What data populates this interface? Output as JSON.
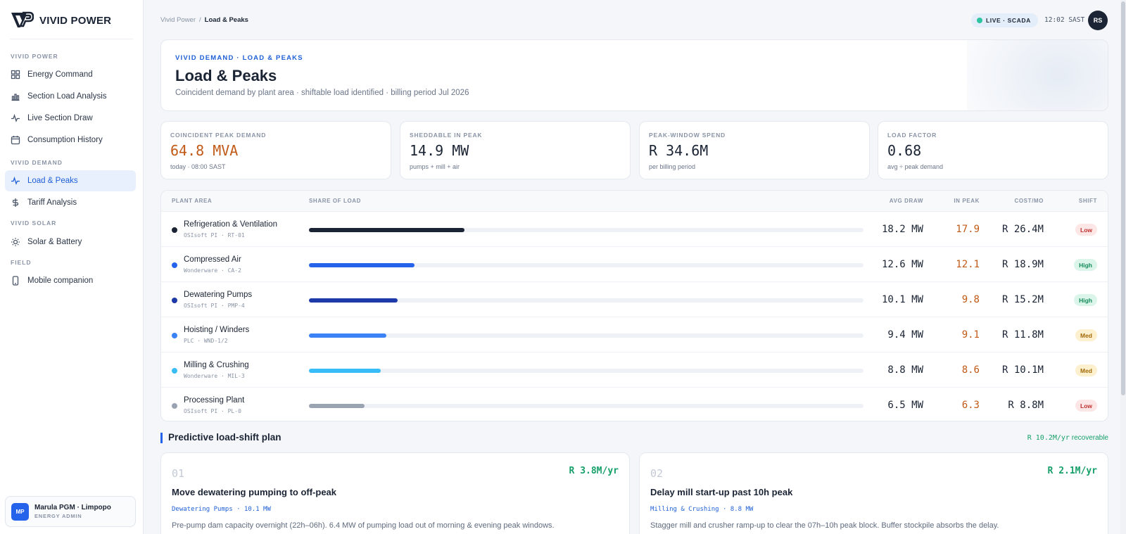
{
  "brand": {
    "name": "VIVID POWER"
  },
  "nav": {
    "sections": [
      {
        "title": "VIVID POWER"
      },
      {
        "title": "VIVID DEMAND"
      },
      {
        "title": "VIVID SOLAR"
      },
      {
        "title": "FIELD"
      }
    ],
    "items": [
      {
        "label": "Energy Command",
        "icon": "grid-icon"
      },
      {
        "label": "Section Load Analysis",
        "icon": "bar-chart-icon"
      },
      {
        "label": "Live Section Draw",
        "icon": "pulse-icon"
      },
      {
        "label": "Consumption History",
        "icon": "calendar-icon"
      },
      {
        "label": "Load & Peaks",
        "icon": "pulse-icon",
        "active": true
      },
      {
        "label": "Tariff Analysis",
        "icon": "dollar-icon"
      },
      {
        "label": "Solar & Battery",
        "icon": "sun-icon"
      },
      {
        "label": "Mobile companion",
        "icon": "phone-icon"
      }
    ]
  },
  "user": {
    "initials": "MP",
    "name": "Marula PGM · Limpopo",
    "role": "ENERGY ADMIN"
  },
  "topbar": {
    "breadcrumb_root": "Vivid Power",
    "breadcrumb_sep": "/",
    "breadcrumb_current": "Load & Peaks",
    "live_label": "LIVE · SCADA",
    "clock": "12:02 SAST",
    "avatar_initials": "RS"
  },
  "hero": {
    "kicker": "VIVID DEMAND · LOAD & PEAKS",
    "title": "Load & Peaks",
    "subtitle": "Coincident demand by plant area · shiftable load identified · billing period Jul 2026"
  },
  "kpis": [
    {
      "label": "COINCIDENT PEAK DEMAND",
      "value": "64.8 MVA",
      "note": "today · 08:00 SAST"
    },
    {
      "label": "SHEDDABLE IN PEAK",
      "value": "14.9 MW",
      "note": "pumps + mill + air"
    },
    {
      "label": "PEAK-WINDOW SPEND",
      "value": "R 34.6M",
      "note": "per billing period"
    },
    {
      "label": "LOAD FACTOR",
      "value": "0.68",
      "note": "avg ÷ peak demand"
    }
  ],
  "table": {
    "headers": {
      "area": "PLANT AREA",
      "share": "SHARE OF LOAD",
      "avg": "AVG DRAW",
      "peak": "IN PEAK",
      "cost": "COST/MO",
      "shift": "SHIFT"
    },
    "rows": [
      {
        "name": "Refrigeration & Ventilation",
        "source": "OSIsoft PI · RT-01",
        "share": 0.28,
        "color": "#1b2434",
        "avg": "18.2 MW",
        "peak": "17.9",
        "cost": "R 26.4M",
        "shift": "Low"
      },
      {
        "name": "Compressed Air",
        "source": "Wonderware · CA-2",
        "share": 0.19,
        "color": "#2563eb",
        "avg": "12.6 MW",
        "peak": "12.1",
        "cost": "R 18.9M",
        "shift": "High"
      },
      {
        "name": "Dewatering Pumps",
        "source": "OSIsoft PI · PMP-4",
        "share": 0.16,
        "color": "#1e3aa8",
        "avg": "10.1 MW",
        "peak": "9.8",
        "cost": "R 15.2M",
        "shift": "High"
      },
      {
        "name": "Hoisting / Winders",
        "source": "PLC · WND-1/2",
        "share": 0.14,
        "color": "#3b82f6",
        "avg": "9.4 MW",
        "peak": "9.1",
        "cost": "R 11.8M",
        "shift": "Med"
      },
      {
        "name": "Milling & Crushing",
        "source": "Wonderware · MIL-3",
        "share": 0.13,
        "color": "#38bdf8",
        "avg": "8.8 MW",
        "peak": "8.6",
        "cost": "R 10.1M",
        "shift": "Med"
      },
      {
        "name": "Processing Plant",
        "source": "OSIsoft PI · PL-0",
        "share": 0.1,
        "color": "#9aa3b2",
        "avg": "6.5 MW",
        "peak": "6.3",
        "cost": "R 8.8M",
        "shift": "Low"
      }
    ]
  },
  "plan": {
    "title": "Predictive load-shift plan",
    "total_value": "R 10.2M/yr",
    "total_suffix": "recoverable",
    "cards": [
      {
        "num": "01",
        "saving": "R 3.8M/yr",
        "title": "Move dewatering pumping to off-peak",
        "tag": "Dewatering Pumps · 10.1 MW",
        "desc": "Pre-pump dam capacity overnight (22h–06h). 6.4 MW of pumping load out of morning & evening peak windows."
      },
      {
        "num": "02",
        "saving": "R 2.1M/yr",
        "title": "Delay mill start-up past 10h peak",
        "tag": "Milling & Crushing · 8.8 MW",
        "desc": "Stagger mill and crusher ramp-up to clear the 07h–10h peak block. Buffer stockpile absorbs the delay."
      }
    ]
  }
}
